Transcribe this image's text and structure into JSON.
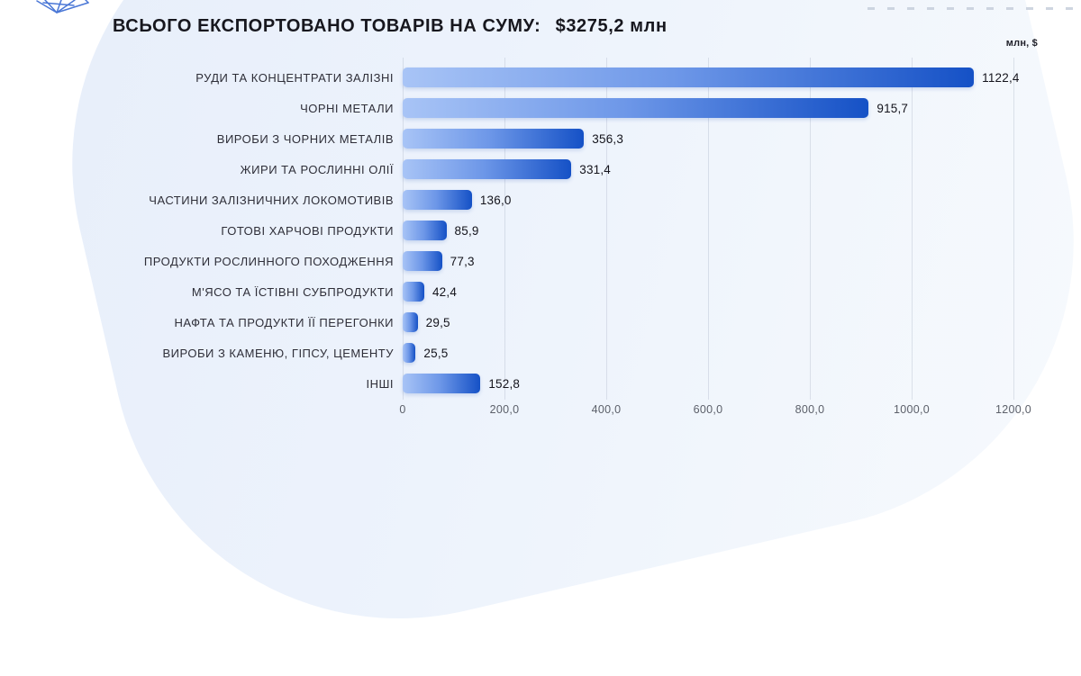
{
  "header": {
    "title_prefix": "ВСЬОГО ЕКСПОРТОВАНО ТОВАРІВ НА СУМУ:",
    "title_value": "$3275,2 млн",
    "unit_label": "млн, $"
  },
  "chart_data": {
    "type": "bar",
    "orientation": "horizontal",
    "title": "ВСЬОГО ЕКСПОРТОВАНО ТОВАРІВ НА СУМУ: $3275,2 млн",
    "unit": "млн, $",
    "categories": [
      "РУДИ ТА КОНЦЕНТРАТИ ЗАЛІЗНІ",
      "ЧОРНІ МЕТАЛИ",
      "ВИРОБИ З ЧОРНИХ МЕТАЛІВ",
      "ЖИРИ ТА РОСЛИННІ ОЛІЇ",
      "ЧАСТИНИ ЗАЛІЗНИЧНИХ ЛОКОМОТИВІВ",
      "ГОТОВІ ХАРЧОВІ ПРОДУКТИ",
      "ПРОДУКТИ РОСЛИННОГО ПОХОДЖЕННЯ",
      "М'ЯСО ТА ЇСТІВНІ СУБПРОДУКТИ",
      "НАФТА ТА ПРОДУКТИ ЇЇ ПЕРЕГОНКИ",
      "ВИРОБИ З КАМЕНЮ, ГІПСУ, ЦЕМЕНТУ",
      "ІНШІ"
    ],
    "values": [
      1122.4,
      915.7,
      356.3,
      331.4,
      136.0,
      85.9,
      77.3,
      42.4,
      29.5,
      25.5,
      152.8
    ],
    "value_labels": [
      "1122,4",
      "915,7",
      "356,3",
      "331,4",
      "136,0",
      "85,9",
      "77,3",
      "42,4",
      "29,5",
      "25,5",
      "152,8"
    ],
    "xlim": [
      0,
      1200
    ],
    "x_tick_labels": [
      "0",
      "200,0",
      "400,0",
      "600,0",
      "800,0",
      "1000,0",
      "1200,0"
    ],
    "x_tick_values": [
      0,
      200,
      400,
      600,
      800,
      1000,
      1200
    ],
    "grid": true,
    "legend": "none",
    "bar_gradient": [
      "#A8C4F6",
      "#1551C6"
    ],
    "background_tint": "#ECF2FB"
  }
}
